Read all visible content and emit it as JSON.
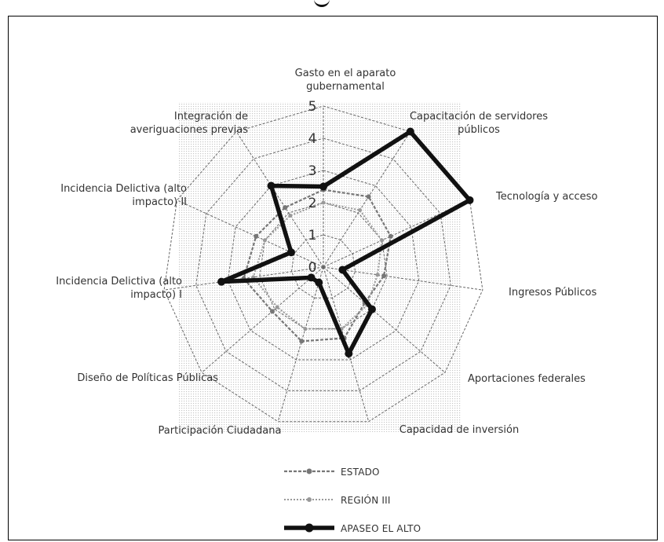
{
  "chart_data": {
    "type": "radar",
    "axes": [
      [
        "Gasto en el aparato",
        "gubernamental"
      ],
      [
        "Capacitación de servidores",
        "públicos"
      ],
      [
        "Tecnología y acceso"
      ],
      [
        "Ingresos Públicos"
      ],
      [
        "Aportaciones federales"
      ],
      [
        "Capacidad de inversión"
      ],
      [
        "Participación Ciudadana"
      ],
      [
        "Diseño de Políticas Públicas"
      ],
      [
        "Incidencia Delictiva (alto",
        "impacto) I"
      ],
      [
        "Incidencia Delictiva (alto",
        "impacto) II"
      ],
      [
        "Integración de",
        "averiguaciones previas"
      ]
    ],
    "rlim": [
      0,
      5
    ],
    "r_ticks": [
      "0",
      "1",
      "2",
      "3",
      "4",
      "5"
    ],
    "series": [
      {
        "name": "ESTADO",
        "values": [
          2.4,
          2.6,
          2.3,
          1.9,
          1.7,
          2.3,
          2.4,
          2.1,
          2.5,
          2.3,
          2.2
        ]
      },
      {
        "name": "REGIÓN III",
        "values": [
          2.0,
          2.1,
          2.0,
          1.7,
          1.8,
          2.0,
          2.0,
          1.9,
          2.2,
          2.0,
          1.9
        ]
      },
      {
        "name": "APASEO EL ALTO",
        "values": [
          2.5,
          5.0,
          5.0,
          0.6,
          2.0,
          2.8,
          0.5,
          0.5,
          3.2,
          1.1,
          3.0
        ]
      }
    ],
    "legend_position": "bottom"
  }
}
